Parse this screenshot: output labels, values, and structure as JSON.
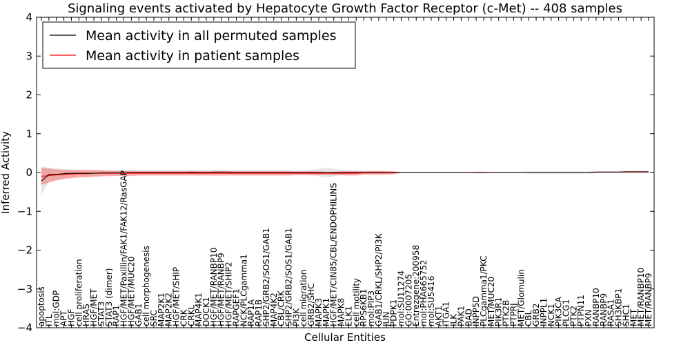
{
  "chart_data": {
    "type": "line",
    "title": "Signaling events activated by Hepatocyte Growth Factor Receptor (c-Met) -- 408 samples",
    "xlabel": "Cellular Entities",
    "ylabel": "Inferred Activity",
    "ylim": [
      -4,
      4
    ],
    "yticks": [
      "−4",
      "−3",
      "−2",
      "−1",
      "0",
      "1",
      "2",
      "3",
      "4"
    ],
    "grid": false,
    "legend": {
      "placement": "top-left",
      "entries": [
        {
          "label": "Mean activity in all permuted samples",
          "color": "#000000"
        },
        {
          "label": "Mean activity in patient samples",
          "color": "#ff0000"
        }
      ]
    },
    "categories": [
      "apoptosis",
      "ITL",
      "mol:GDP",
      "APT",
      "HGF",
      "cell proliferation",
      "HRAS",
      "HGF/MET",
      "STAT3",
      "STAT3 (dimer)",
      "RAP1",
      "HGF/MET/Paxillin/FAK1/FAK12/RasGAP",
      "HGF/MET/MUC20",
      "GAB1",
      "cell morphogenesis",
      "SRC",
      "MAP2K1",
      "MAP2K2",
      "HGF/MET/SHIP",
      "CRK",
      "CRKL",
      "MAP4K1",
      "DOCK1",
      "HGF/MET/RANBP10",
      "HGF/MET/RANBP9",
      "HGF/MET/SHIP2",
      "RAPGEF1",
      "NCK/PLCgamma1",
      "RAP1A",
      "RAP1B",
      "SHP2/GRB2/SOS1/GAB1",
      "MAP4K2",
      "CBL/CRK",
      "SHP2/GRB2/SOS1/GAB1",
      "PI3K",
      "cell migration",
      "GRB2/SHC",
      "MAPK3",
      "MAPK1",
      "HGF/MET/CIN85/CBL/ENDOPHILINS",
      "MAPK8",
      "ELK1",
      "cell motility",
      "RPS6KB1",
      "mol:PIP3",
      "GAB1/CRKL/SHP2/PI3K",
      "JUN",
      "PDPK1",
      "mol:SU11274",
      "GO:0007205",
      "Entrezgene:200958",
      "mol:PHA665752",
      "mol:SU5416",
      "AKT1",
      "ITGA1",
      "ILK",
      "PAK1",
      "BAD",
      "INPP5D",
      "PLCgamma1/PKC",
      "MET/MUC20",
      "PIK3R1",
      "PTK2B",
      "PTPRJ",
      "MET/Glomulin",
      "CBL",
      "GRB2",
      "INPPL1",
      "NCK1",
      "PIK3CA",
      "PLCG1",
      "PTK2",
      "PTPN11",
      "PXN",
      "RANBP10",
      "RANBP9",
      "RASA1",
      "SH3KBP1",
      "SHC1",
      "MET",
      "MET/RANBP10",
      "MET/RANBP9"
    ],
    "series": [
      {
        "name": "Mean activity in all permuted samples",
        "color": "#000000",
        "values": [
          -0.22,
          -0.05,
          -0.05,
          -0.03,
          -0.02,
          -0.02,
          -0.02,
          -0.02,
          -0.01,
          -0.01,
          -0.01,
          -0.01,
          0.0,
          0.0,
          0.0,
          0.0,
          0.0,
          0.0,
          0.0,
          0.0,
          0.01,
          0.0,
          0.0,
          0.01,
          0.01,
          0.01,
          0.0,
          0.0,
          0.0,
          0.0,
          0.0,
          0.0,
          0.0,
          0.0,
          0.0,
          0.0,
          0.0,
          0.0,
          0.0,
          0.0,
          0.0,
          0.0,
          0.0,
          0.0,
          0.0,
          0.0,
          0.0,
          0.0,
          0.0,
          0.0,
          0.0,
          0.0,
          0.0,
          0.0,
          0.0,
          0.0,
          0.0,
          0.0,
          0.0,
          0.0,
          0.0,
          0.0,
          0.0,
          0.0,
          0.0,
          0.0,
          0.0,
          0.0,
          0.0,
          0.0,
          0.0,
          0.0,
          0.0,
          0.0,
          0.01,
          0.01,
          0.01,
          0.01,
          0.02,
          0.02,
          0.02,
          0.02
        ],
        "band": [
          0.38,
          0.18,
          0.15,
          0.12,
          0.1,
          0.08,
          0.08,
          0.07,
          0.07,
          0.06,
          0.06,
          0.05,
          0.05,
          0.05,
          0.05,
          0.05,
          0.05,
          0.05,
          0.05,
          0.05,
          0.05,
          0.05,
          0.05,
          0.05,
          0.05,
          0.05,
          0.05,
          0.05,
          0.05,
          0.05,
          0.05,
          0.05,
          0.05,
          0.05,
          0.05,
          0.05,
          0.07,
          0.1,
          0.12,
          0.1,
          0.07,
          0.05,
          0.04,
          0.04,
          0.04,
          0.04,
          0.03,
          0.02,
          0.02,
          0.02,
          0.02,
          0.02,
          0.02,
          0.02,
          0.02,
          0.02,
          0.02,
          0.02,
          0.02,
          0.02,
          0.02,
          0.02,
          0.02,
          0.02,
          0.02,
          0.03,
          0.03,
          0.03,
          0.03,
          0.03,
          0.03,
          0.03,
          0.03,
          0.03,
          0.03,
          0.03,
          0.03,
          0.03,
          0.03,
          0.03,
          0.03,
          0.03
        ]
      },
      {
        "name": "Mean activity in patient samples",
        "color": "#ff0000",
        "values": [
          -0.1,
          -0.08,
          -0.06,
          -0.05,
          -0.04,
          -0.03,
          -0.03,
          -0.02,
          -0.02,
          -0.02,
          -0.02,
          -0.02,
          -0.02,
          -0.02,
          -0.02,
          -0.02,
          -0.02,
          -0.02,
          -0.02,
          -0.02,
          -0.02,
          -0.02,
          -0.02,
          -0.02,
          -0.02,
          -0.02,
          -0.02,
          -0.02,
          -0.02,
          -0.02,
          -0.02,
          -0.02,
          -0.02,
          -0.02,
          -0.02,
          -0.02,
          -0.02,
          -0.02,
          -0.02,
          -0.02,
          -0.02,
          -0.02,
          -0.02,
          -0.01,
          -0.01,
          -0.01,
          -0.01,
          -0.01,
          0.0,
          0.0,
          0.0,
          0.0,
          0.0,
          0.0,
          0.0,
          0.0,
          0.0,
          0.0,
          0.0,
          0.0,
          0.0,
          0.0,
          0.0,
          0.0,
          0.0,
          0.0,
          0.0,
          0.0,
          0.0,
          0.0,
          0.0,
          0.0,
          0.0,
          0.0,
          0.01,
          0.01,
          0.01,
          0.01,
          0.01,
          0.01,
          0.01,
          0.01
        ],
        "band": [
          0.22,
          0.18,
          0.14,
          0.12,
          0.11,
          0.1,
          0.1,
          0.09,
          0.08,
          0.07,
          0.07,
          0.07,
          0.07,
          0.06,
          0.06,
          0.06,
          0.06,
          0.06,
          0.06,
          0.06,
          0.06,
          0.06,
          0.06,
          0.06,
          0.06,
          0.06,
          0.06,
          0.06,
          0.06,
          0.06,
          0.06,
          0.06,
          0.06,
          0.06,
          0.05,
          0.05,
          0.05,
          0.05,
          0.04,
          0.04,
          0.05,
          0.06,
          0.06,
          0.05,
          0.05,
          0.05,
          0.05,
          0.04,
          0.01,
          0.01,
          0.01,
          0.01,
          0.01,
          0.01,
          0.01,
          0.01,
          0.01,
          0.01,
          0.02,
          0.02,
          0.01,
          0.01,
          0.01,
          0.01,
          0.01,
          0.01,
          0.01,
          0.01,
          0.01,
          0.01,
          0.01,
          0.01,
          0.01,
          0.01,
          0.01,
          0.01,
          0.01,
          0.01,
          0.01,
          0.01,
          0.01,
          0.01
        ]
      }
    ]
  }
}
